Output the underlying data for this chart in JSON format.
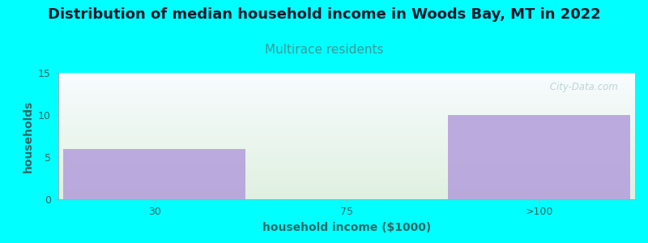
{
  "title": "Distribution of median household income in Woods Bay, MT in 2022",
  "subtitle": "Multirace residents",
  "subtitle_color": "#3d9999",
  "xlabel": "household income ($1000)",
  "ylabel": "households",
  "categories": [
    "30",
    "75",
    ">100"
  ],
  "values": [
    6,
    0,
    10
  ],
  "bar_color": "#b39ddb",
  "bar_alpha": 0.85,
  "ylim": [
    0,
    15
  ],
  "yticks": [
    0,
    5,
    10,
    15
  ],
  "background_color": "#00ffff",
  "plot_bg_top": "#f8fcff",
  "plot_bg_bottom": "#dff0e0",
  "watermark": " City-Data.com",
  "title_fontsize": 13,
  "subtitle_fontsize": 11,
  "axis_label_fontsize": 10,
  "tick_color": "#336666",
  "label_color": "#336666"
}
